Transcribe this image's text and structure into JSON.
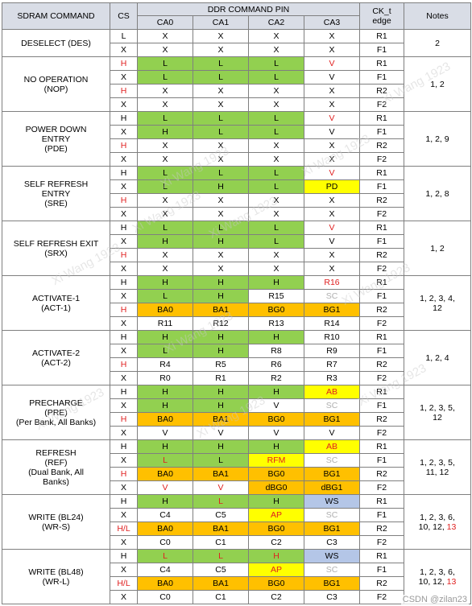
{
  "header": {
    "command": "SDRAM COMMAND",
    "cs": "CS",
    "ddr_pin": "DDR COMMAND PIN",
    "ca0": "CA0",
    "ca1": "CA1",
    "ca2": "CA2",
    "ca3": "CA3",
    "ck_line1": "CK_t",
    "ck_line2": "edge",
    "notes": "Notes"
  },
  "colors": {
    "green": "#92d050",
    "orange": "#ffc000",
    "yellow": "#ffff00",
    "blue": "#b4c6e7",
    "red_text": "#e02020",
    "gray_text": "#b0b0b0",
    "header_bg": "#d9dde6"
  },
  "groups": [
    {
      "name": [
        "DESELECT (DES)"
      ],
      "notes": [
        "2"
      ],
      "rows": [
        {
          "cs": "L",
          "ca": [
            [
              "X",
              ""
            ],
            [
              "X",
              ""
            ],
            [
              "X",
              ""
            ],
            [
              "X",
              ""
            ]
          ],
          "edge": "R1"
        },
        {
          "cs": "X",
          "ca": [
            [
              "X",
              ""
            ],
            [
              "X",
              ""
            ],
            [
              "X",
              ""
            ],
            [
              "X",
              ""
            ]
          ],
          "edge": "F1"
        }
      ]
    },
    {
      "name": [
        "NO OPERATION",
        "(NOP)"
      ],
      "notes": [
        "1, 2"
      ],
      "rows": [
        {
          "cs": "H",
          "cs_red": true,
          "ca": [
            [
              "L",
              "g"
            ],
            [
              "L",
              "g"
            ],
            [
              "L",
              "g"
            ],
            [
              "V",
              "",
              "red"
            ]
          ],
          "edge": "R1"
        },
        {
          "cs": "X",
          "ca": [
            [
              "L",
              "g"
            ],
            [
              "L",
              "g"
            ],
            [
              "L",
              "g"
            ],
            [
              "V",
              ""
            ]
          ],
          "edge": "F1"
        },
        {
          "cs": "H",
          "cs_red": true,
          "ca": [
            [
              "X",
              ""
            ],
            [
              "X",
              ""
            ],
            [
              "X",
              ""
            ],
            [
              "X",
              ""
            ]
          ],
          "edge": "R2"
        },
        {
          "cs": "X",
          "ca": [
            [
              "X",
              ""
            ],
            [
              "X",
              ""
            ],
            [
              "X",
              ""
            ],
            [
              "X",
              ""
            ]
          ],
          "edge": "F2"
        }
      ]
    },
    {
      "name": [
        "POWER DOWN",
        "ENTRY",
        "(PDE)"
      ],
      "notes": [
        "1, 2, 9"
      ],
      "rows": [
        {
          "cs": "H",
          "ca": [
            [
              "L",
              "g"
            ],
            [
              "L",
              "g"
            ],
            [
              "L",
              "g"
            ],
            [
              "V",
              "",
              "red"
            ]
          ],
          "edge": "R1"
        },
        {
          "cs": "X",
          "ca": [
            [
              "H",
              "g"
            ],
            [
              "L",
              "g"
            ],
            [
              "L",
              "g"
            ],
            [
              "V",
              ""
            ]
          ],
          "edge": "F1"
        },
        {
          "cs": "H",
          "cs_red": true,
          "ca": [
            [
              "X",
              ""
            ],
            [
              "X",
              ""
            ],
            [
              "X",
              ""
            ],
            [
              "X",
              ""
            ]
          ],
          "edge": "R2"
        },
        {
          "cs": "X",
          "ca": [
            [
              "X",
              ""
            ],
            [
              "X",
              ""
            ],
            [
              "X",
              ""
            ],
            [
              "X",
              ""
            ]
          ],
          "edge": "F2"
        }
      ]
    },
    {
      "name": [
        "SELF REFRESH",
        "ENTRY",
        "(SRE)"
      ],
      "notes": [
        "1, 2, 8"
      ],
      "rows": [
        {
          "cs": "H",
          "ca": [
            [
              "L",
              "g"
            ],
            [
              "L",
              "g"
            ],
            [
              "L",
              "g"
            ],
            [
              "V",
              "",
              "red"
            ]
          ],
          "edge": "R1"
        },
        {
          "cs": "X",
          "ca": [
            [
              "L",
              "g"
            ],
            [
              "H",
              "g"
            ],
            [
              "L",
              "g"
            ],
            [
              "PD",
              "y"
            ]
          ],
          "edge": "F1"
        },
        {
          "cs": "H",
          "cs_red": true,
          "ca": [
            [
              "X",
              ""
            ],
            [
              "X",
              ""
            ],
            [
              "X",
              ""
            ],
            [
              "X",
              ""
            ]
          ],
          "edge": "R2"
        },
        {
          "cs": "X",
          "ca": [
            [
              "X",
              ""
            ],
            [
              "X",
              ""
            ],
            [
              "X",
              ""
            ],
            [
              "X",
              ""
            ]
          ],
          "edge": "F2"
        }
      ]
    },
    {
      "name": [
        "SELF REFRESH EXIT",
        "(SRX)"
      ],
      "notes": [
        "1, 2"
      ],
      "rows": [
        {
          "cs": "H",
          "ca": [
            [
              "L",
              "g"
            ],
            [
              "L",
              "g"
            ],
            [
              "L",
              "g"
            ],
            [
              "V",
              "",
              "red"
            ]
          ],
          "edge": "R1"
        },
        {
          "cs": "X",
          "ca": [
            [
              "H",
              "g"
            ],
            [
              "H",
              "g"
            ],
            [
              "L",
              "g"
            ],
            [
              "V",
              ""
            ]
          ],
          "edge": "F1"
        },
        {
          "cs": "H",
          "cs_red": true,
          "ca": [
            [
              "X",
              ""
            ],
            [
              "X",
              ""
            ],
            [
              "X",
              ""
            ],
            [
              "X",
              ""
            ]
          ],
          "edge": "R2"
        },
        {
          "cs": "X",
          "ca": [
            [
              "X",
              ""
            ],
            [
              "X",
              ""
            ],
            [
              "X",
              ""
            ],
            [
              "X",
              ""
            ]
          ],
          "edge": "F2"
        }
      ]
    },
    {
      "name": [
        "ACTIVATE-1",
        "(ACT-1)"
      ],
      "notes": [
        "1, 2, 3, 4,",
        "12"
      ],
      "rows": [
        {
          "cs": "H",
          "ca": [
            [
              "H",
              "g"
            ],
            [
              "H",
              "g"
            ],
            [
              "H",
              "g"
            ],
            [
              "R16",
              "",
              "red"
            ]
          ],
          "edge": "R1"
        },
        {
          "cs": "X",
          "ca": [
            [
              "L",
              "g"
            ],
            [
              "H",
              "g"
            ],
            [
              "R15",
              ""
            ],
            [
              "SC",
              "",
              "gray"
            ]
          ],
          "edge": "F1"
        },
        {
          "cs": "H",
          "cs_red": true,
          "ca": [
            [
              "BA0",
              "o"
            ],
            [
              "BA1",
              "o"
            ],
            [
              "BG0",
              "o"
            ],
            [
              "BG1",
              "o"
            ]
          ],
          "edge": "R2"
        },
        {
          "cs": "X",
          "ca": [
            [
              "R11",
              ""
            ],
            [
              "R12",
              ""
            ],
            [
              "R13",
              ""
            ],
            [
              "R14",
              ""
            ]
          ],
          "edge": "F2"
        }
      ]
    },
    {
      "name": [
        "ACTIVATE-2",
        "(ACT-2)"
      ],
      "notes": [
        "1, 2, 4"
      ],
      "rows": [
        {
          "cs": "H",
          "ca": [
            [
              "H",
              "g"
            ],
            [
              "H",
              "g"
            ],
            [
              "H",
              "g"
            ],
            [
              "R10",
              ""
            ]
          ],
          "edge": "R1"
        },
        {
          "cs": "X",
          "ca": [
            [
              "L",
              "g"
            ],
            [
              "H",
              "g"
            ],
            [
              "R8",
              ""
            ],
            [
              "R9",
              ""
            ]
          ],
          "edge": "F1"
        },
        {
          "cs": "H",
          "cs_red": true,
          "ca": [
            [
              "R4",
              ""
            ],
            [
              "R5",
              ""
            ],
            [
              "R6",
              ""
            ],
            [
              "R7",
              ""
            ]
          ],
          "edge": "R2"
        },
        {
          "cs": "X",
          "ca": [
            [
              "R0",
              ""
            ],
            [
              "R1",
              ""
            ],
            [
              "R2",
              ""
            ],
            [
              "R3",
              ""
            ]
          ],
          "edge": "F2"
        }
      ]
    },
    {
      "name": [
        "PRECHARGE",
        "(PRE)",
        "(Per Bank, All Banks)"
      ],
      "notes": [
        "1, 2, 3, 5,",
        "12"
      ],
      "rows": [
        {
          "cs": "H",
          "ca": [
            [
              "H",
              "g"
            ],
            [
              "H",
              "g"
            ],
            [
              "H",
              "g"
            ],
            [
              "AB",
              "y",
              "red"
            ]
          ],
          "edge": "R1"
        },
        {
          "cs": "X",
          "ca": [
            [
              "H",
              "g"
            ],
            [
              "H",
              "g"
            ],
            [
              "V",
              ""
            ],
            [
              "SC",
              "",
              "gray"
            ]
          ],
          "edge": "F1"
        },
        {
          "cs": "H",
          "cs_red": true,
          "ca": [
            [
              "BA0",
              "o"
            ],
            [
              "BA1",
              "o"
            ],
            [
              "BG0",
              "o"
            ],
            [
              "BG1",
              "o"
            ]
          ],
          "edge": "R2"
        },
        {
          "cs": "X",
          "ca": [
            [
              "V",
              ""
            ],
            [
              "V",
              ""
            ],
            [
              "V",
              ""
            ],
            [
              "V",
              ""
            ]
          ],
          "edge": "F2"
        }
      ]
    },
    {
      "name": [
        "REFRESH",
        "(REF)",
        "(Dual Bank, All",
        "Banks)"
      ],
      "notes": [
        "1, 2, 3, 5,",
        "11, 12"
      ],
      "rows": [
        {
          "cs": "H",
          "ca": [
            [
              "H",
              "g"
            ],
            [
              "H",
              "g"
            ],
            [
              "H",
              "g"
            ],
            [
              "AB",
              "y",
              "red"
            ]
          ],
          "edge": "R1"
        },
        {
          "cs": "X",
          "ca": [
            [
              "L",
              "g",
              "red"
            ],
            [
              "L",
              "g"
            ],
            [
              "RFM",
              "y",
              "red"
            ],
            [
              "SC",
              "",
              "gray"
            ]
          ],
          "edge": "F1"
        },
        {
          "cs": "H",
          "cs_red": true,
          "ca": [
            [
              "BA0",
              "o"
            ],
            [
              "BA1",
              "o"
            ],
            [
              "BG0",
              "o"
            ],
            [
              "BG1",
              "o"
            ]
          ],
          "edge": "R2"
        },
        {
          "cs": "X",
          "ca": [
            [
              "V",
              "",
              "red"
            ],
            [
              "V",
              "",
              "red"
            ],
            [
              "dBG0",
              "o"
            ],
            [
              "dBG1",
              "o"
            ]
          ],
          "edge": "F2"
        }
      ]
    },
    {
      "name": [
        "WRITE (BL24)",
        "(WR-S)"
      ],
      "notes": [
        "1, 2, 3, 6,",
        "10, 12, |13"
      ],
      "rows": [
        {
          "cs": "H",
          "ca": [
            [
              "H",
              "g"
            ],
            [
              "L",
              "g",
              "red"
            ],
            [
              "H",
              "g"
            ],
            [
              "WS",
              "b"
            ]
          ],
          "edge": "R1"
        },
        {
          "cs": "X",
          "ca": [
            [
              "C4",
              ""
            ],
            [
              "C5",
              ""
            ],
            [
              "AP",
              "y",
              "red"
            ],
            [
              "SC",
              "",
              "gray"
            ]
          ],
          "edge": "F1"
        },
        {
          "cs": "H/L",
          "cs_red": true,
          "ca": [
            [
              "BA0",
              "o"
            ],
            [
              "BA1",
              "o"
            ],
            [
              "BG0",
              "o"
            ],
            [
              "BG1",
              "o"
            ]
          ],
          "edge": "R2"
        },
        {
          "cs": "X",
          "ca": [
            [
              "C0",
              ""
            ],
            [
              "C1",
              ""
            ],
            [
              "C2",
              ""
            ],
            [
              "C3",
              ""
            ]
          ],
          "edge": "F2"
        }
      ]
    },
    {
      "name": [
        "WRITE (BL48)",
        "(WR-L)"
      ],
      "notes": [
        "1, 2, 3, 6,",
        "10, 12, |13"
      ],
      "rows": [
        {
          "cs": "H",
          "ca": [
            [
              "L",
              "g",
              "red"
            ],
            [
              "L",
              "g",
              "red"
            ],
            [
              "H",
              "g",
              "red"
            ],
            [
              "WS",
              "b"
            ]
          ],
          "edge": "R1"
        },
        {
          "cs": "X",
          "ca": [
            [
              "C4",
              ""
            ],
            [
              "C5",
              ""
            ],
            [
              "AP",
              "y",
              "red"
            ],
            [
              "SC",
              "",
              "gray"
            ]
          ],
          "edge": "F1"
        },
        {
          "cs": "H/L",
          "cs_red": true,
          "ca": [
            [
              "BA0",
              "o"
            ],
            [
              "BA1",
              "o"
            ],
            [
              "BG0",
              "o"
            ],
            [
              "BG1",
              "o"
            ]
          ],
          "edge": "R2"
        },
        {
          "cs": "X",
          "ca": [
            [
              "C0",
              ""
            ],
            [
              "C1",
              ""
            ],
            [
              "C2",
              ""
            ],
            [
              "C3",
              ""
            ]
          ],
          "edge": "F2"
        }
      ]
    }
  ],
  "watermarks": [
    "Xi Wang 1923"
  ],
  "footer": "CSDN @zilan23"
}
